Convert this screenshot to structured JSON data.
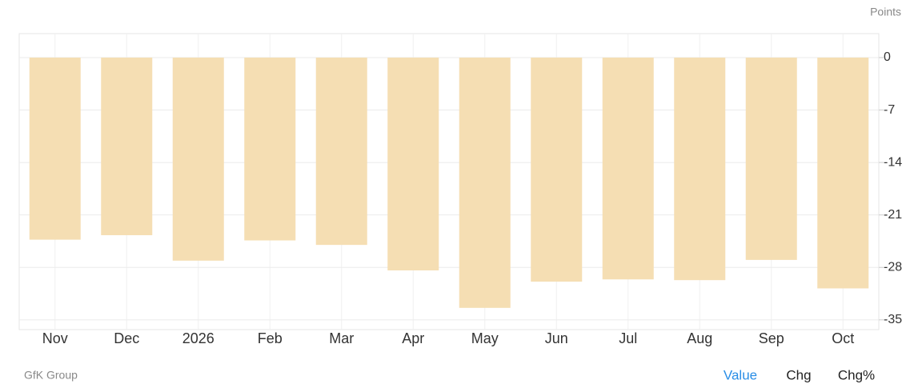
{
  "chart_data": {
    "type": "bar",
    "y_axis_label": "Points",
    "categories": [
      "Nov",
      "Dec",
      "2026",
      "Feb",
      "Mar",
      "Apr",
      "May",
      "Jun",
      "Jul",
      "Aug",
      "Sep",
      "Oct"
    ],
    "values": [
      -24.3,
      -23.7,
      -27.1,
      -24.4,
      -25.0,
      -28.4,
      -33.4,
      -29.9,
      -29.6,
      -29.7,
      -27.0,
      -30.8
    ],
    "color": "#f5deb3",
    "ylim": [
      -36.3,
      3.2
    ],
    "yticks": [
      0,
      -7,
      -14,
      -21,
      -28,
      -35
    ],
    "grid": true
  },
  "source": "GfK Group",
  "buttons": [
    "Value",
    "Chg",
    "Chg%"
  ]
}
